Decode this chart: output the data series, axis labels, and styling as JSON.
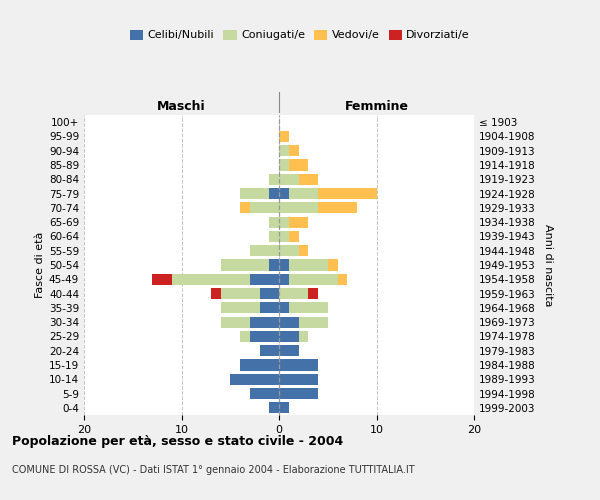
{
  "age_groups": [
    "0-4",
    "5-9",
    "10-14",
    "15-19",
    "20-24",
    "25-29",
    "30-34",
    "35-39",
    "40-44",
    "45-49",
    "50-54",
    "55-59",
    "60-64",
    "65-69",
    "70-74",
    "75-79",
    "80-84",
    "85-89",
    "90-94",
    "95-99",
    "100+"
  ],
  "birth_years": [
    "1999-2003",
    "1994-1998",
    "1989-1993",
    "1984-1988",
    "1979-1983",
    "1974-1978",
    "1969-1973",
    "1964-1968",
    "1959-1963",
    "1954-1958",
    "1949-1953",
    "1944-1948",
    "1939-1943",
    "1934-1938",
    "1929-1933",
    "1924-1928",
    "1919-1923",
    "1914-1918",
    "1909-1913",
    "1904-1908",
    "≤ 1903"
  ],
  "males": {
    "celibe": [
      1,
      3,
      5,
      4,
      2,
      3,
      3,
      2,
      2,
      3,
      1,
      0,
      0,
      0,
      0,
      1,
      0,
      0,
      0,
      0,
      0
    ],
    "coniugato": [
      0,
      0,
      0,
      0,
      0,
      1,
      3,
      4,
      4,
      8,
      5,
      3,
      1,
      1,
      3,
      3,
      1,
      0,
      0,
      0,
      0
    ],
    "vedovo": [
      0,
      0,
      0,
      0,
      0,
      0,
      0,
      0,
      0,
      0,
      0,
      0,
      0,
      0,
      1,
      0,
      0,
      0,
      0,
      0,
      0
    ],
    "divorziato": [
      0,
      0,
      0,
      0,
      0,
      0,
      0,
      0,
      1,
      2,
      0,
      0,
      0,
      0,
      0,
      0,
      0,
      0,
      0,
      0,
      0
    ]
  },
  "females": {
    "nubile": [
      1,
      4,
      4,
      4,
      2,
      2,
      2,
      1,
      0,
      1,
      1,
      0,
      0,
      0,
      0,
      1,
      0,
      0,
      0,
      0,
      0
    ],
    "coniugata": [
      0,
      0,
      0,
      0,
      0,
      1,
      3,
      4,
      3,
      5,
      4,
      2,
      1,
      1,
      4,
      3,
      2,
      1,
      1,
      0,
      0
    ],
    "vedova": [
      0,
      0,
      0,
      0,
      0,
      0,
      0,
      0,
      0,
      1,
      1,
      1,
      1,
      2,
      4,
      6,
      2,
      2,
      1,
      1,
      0
    ],
    "divorziata": [
      0,
      0,
      0,
      0,
      0,
      0,
      0,
      0,
      1,
      0,
      0,
      0,
      0,
      0,
      0,
      0,
      0,
      0,
      0,
      0,
      0
    ]
  },
  "colors": {
    "celibe": "#4472a8",
    "coniugato": "#c5d9a0",
    "vedovo": "#ffc050",
    "divorziato": "#cc2222"
  },
  "xlim": [
    -20,
    20
  ],
  "xticks": [
    -20,
    -10,
    0,
    10,
    20
  ],
  "xticklabels": [
    "20",
    "10",
    "0",
    "10",
    "20"
  ],
  "title": "Popolazione per età, sesso e stato civile - 2004",
  "subtitle": "COMUNE DI ROSSA (VC) - Dati ISTAT 1° gennaio 2004 - Elaborazione TUTTITALIA.IT",
  "ylabel_left": "Fasce di età",
  "ylabel_right": "Anni di nascita",
  "header_left": "Maschi",
  "header_right": "Femmine",
  "bg_color": "#f0f0f0",
  "plot_bg": "#ffffff"
}
